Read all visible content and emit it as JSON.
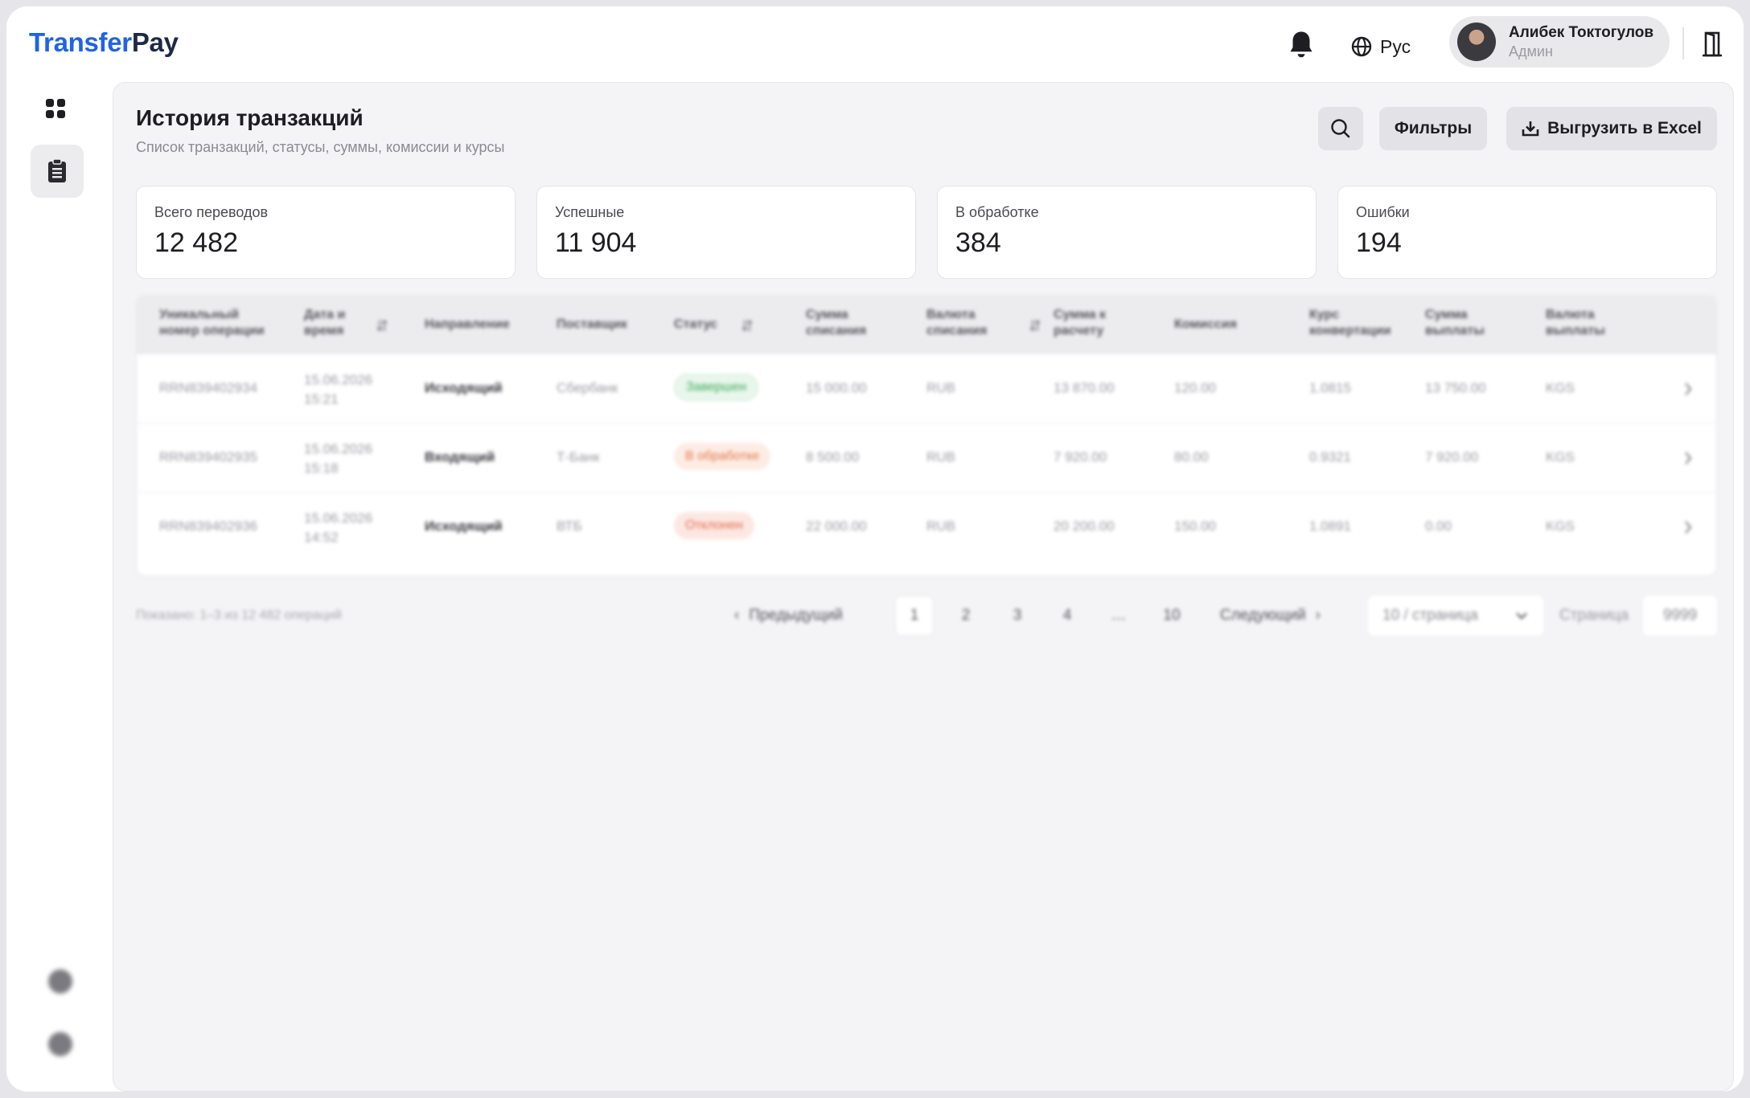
{
  "header": {
    "logo_part1": "Transfer",
    "logo_part2": "Pay",
    "language": "Рус",
    "user_name": "Алибек Токтогулов",
    "user_role": "Админ"
  },
  "page": {
    "title": "История транзакций",
    "subtitle": "Список транзакций, статусы, суммы, комиссии и курсы",
    "filters_label": "Фильтры",
    "export_label": "Выгрузить в Excel"
  },
  "stats": [
    {
      "label": "Всего переводов",
      "value": "12 482"
    },
    {
      "label": "Успешные",
      "value": "11 904"
    },
    {
      "label": "В обработке",
      "value": "384"
    },
    {
      "label": "Ошибки",
      "value": "194"
    }
  ],
  "table": {
    "columns": [
      "Уникальный номер операции",
      "Дата и время",
      "Направление",
      "Поставщик",
      "Статус",
      "Сумма списания",
      "Валюта списания",
      "Сумма к расчету",
      "Комиссия",
      "Курс конвертации",
      "Сумма выплаты",
      "Валюта выплаты"
    ],
    "rows": [
      {
        "id": "RRN839402934",
        "date": "15.06.2026",
        "time": "15:21",
        "direction": "Исходящий",
        "provider": "Сбербанк",
        "status": "Завершен",
        "debit_amount": "15 000.00",
        "debit_currency": "RUB",
        "settlement": "13 870.00",
        "commission": "120.00",
        "rate": "1.0815",
        "payout": "13 750.00",
        "payout_currency": "KGS"
      },
      {
        "id": "RRN839402935",
        "date": "15.06.2026",
        "time": "15:18",
        "direction": "Входящий",
        "provider": "Т-Банк",
        "status": "В обработке",
        "debit_amount": "8 500.00",
        "debit_currency": "RUB",
        "settlement": "7 920.00",
        "commission": "80.00",
        "rate": "0.9321",
        "payout": "7 920.00",
        "payout_currency": "KGS"
      },
      {
        "id": "RRN839402936",
        "date": "15.06.2026",
        "time": "14:52",
        "direction": "Исходящий",
        "provider": "ВТБ",
        "status": "Отклонен",
        "debit_amount": "22 000.00",
        "debit_currency": "RUB",
        "settlement": "20 200.00",
        "commission": "150.00",
        "rate": "1.0891",
        "payout": "0.00",
        "payout_currency": "KGS"
      }
    ]
  },
  "pagination": {
    "shown": "Показано: 1–3 из 12 482 операций",
    "prev": "Предыдущий",
    "next": "Следующий",
    "pages": [
      "1",
      "2",
      "3",
      "4",
      "…",
      "10"
    ],
    "per_page": "10 / страница",
    "goto_label": "Страница",
    "goto_value": "9999"
  }
}
